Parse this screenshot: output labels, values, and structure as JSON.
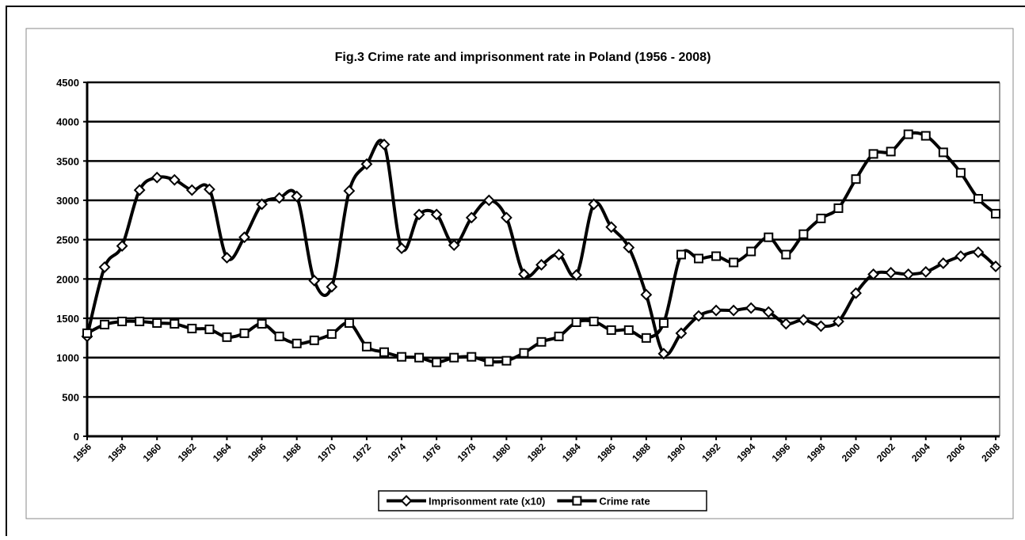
{
  "chart_data": {
    "type": "line",
    "title": "Fig.3 Crime rate and imprisonment rate in Poland (1956 - 2008)",
    "x": [
      1956,
      1957,
      1958,
      1959,
      1960,
      1961,
      1962,
      1963,
      1964,
      1965,
      1966,
      1967,
      1968,
      1969,
      1970,
      1971,
      1972,
      1973,
      1974,
      1975,
      1976,
      1977,
      1978,
      1979,
      1980,
      1981,
      1982,
      1983,
      1984,
      1985,
      1986,
      1987,
      1988,
      1989,
      1990,
      1991,
      1992,
      1993,
      1994,
      1995,
      1996,
      1997,
      1998,
      1999,
      2000,
      2001,
      2002,
      2003,
      2004,
      2005,
      2006,
      2007,
      2008
    ],
    "series": [
      {
        "name": "Imprisonment rate (x10)",
        "color": "#000000",
        "marker": "diamond",
        "values": [
          1270,
          2150,
          2420,
          3130,
          3290,
          3260,
          3130,
          3140,
          2270,
          2530,
          2950,
          3030,
          3050,
          1980,
          1900,
          3120,
          3460,
          3710,
          2390,
          2820,
          2820,
          2430,
          2780,
          3000,
          2780,
          2060,
          2180,
          2310,
          2050,
          2950,
          2660,
          2400,
          1800,
          1050,
          1310,
          1530,
          1600,
          1600,
          1630,
          1580,
          1430,
          1480,
          1400,
          1460,
          1820,
          2060,
          2080,
          2060,
          2090,
          2200,
          2290,
          2340,
          2160
        ]
      },
      {
        "name": "Crime rate",
        "color": "#000000",
        "marker": "square",
        "values": [
          1310,
          1420,
          1460,
          1460,
          1440,
          1430,
          1370,
          1360,
          1260,
          1310,
          1430,
          1270,
          1180,
          1220,
          1300,
          1440,
          1140,
          1070,
          1010,
          1000,
          940,
          1000,
          1010,
          950,
          960,
          1060,
          1200,
          1270,
          1450,
          1460,
          1350,
          1350,
          1250,
          1440,
          2310,
          2260,
          2290,
          2210,
          2350,
          2530,
          2310,
          2570,
          2770,
          2900,
          3270,
          3590,
          3620,
          3840,
          3820,
          3610,
          3350,
          3020,
          2830
        ]
      }
    ],
    "xlim": [
      1956,
      2008
    ],
    "xticks": [
      1956,
      1958,
      1960,
      1962,
      1964,
      1966,
      1968,
      1970,
      1972,
      1974,
      1976,
      1978,
      1980,
      1982,
      1984,
      1986,
      1988,
      1990,
      1992,
      1994,
      1996,
      1998,
      2000,
      2002,
      2004,
      2006,
      2008
    ],
    "ylim": [
      0,
      4500
    ],
    "yticks": [
      0,
      500,
      1000,
      1500,
      2000,
      2500,
      3000,
      3500,
      4000,
      4500
    ],
    "grid": true,
    "legend": "bottom"
  }
}
